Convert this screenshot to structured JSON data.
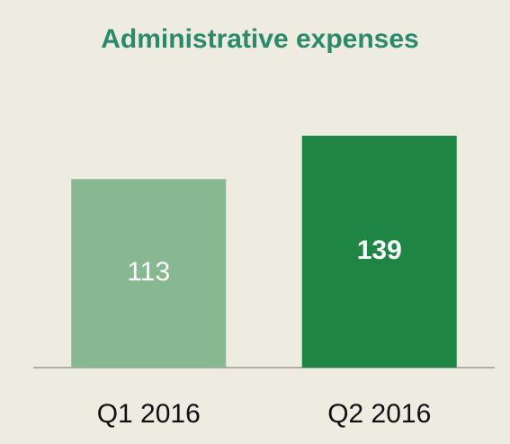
{
  "chart_data": {
    "type": "bar",
    "title": "Administrative expenses",
    "categories": [
      "Q1 2016",
      "Q2 2016"
    ],
    "values": [
      113,
      139
    ],
    "colors": [
      "#88b892",
      "#1f8545"
    ]
  }
}
